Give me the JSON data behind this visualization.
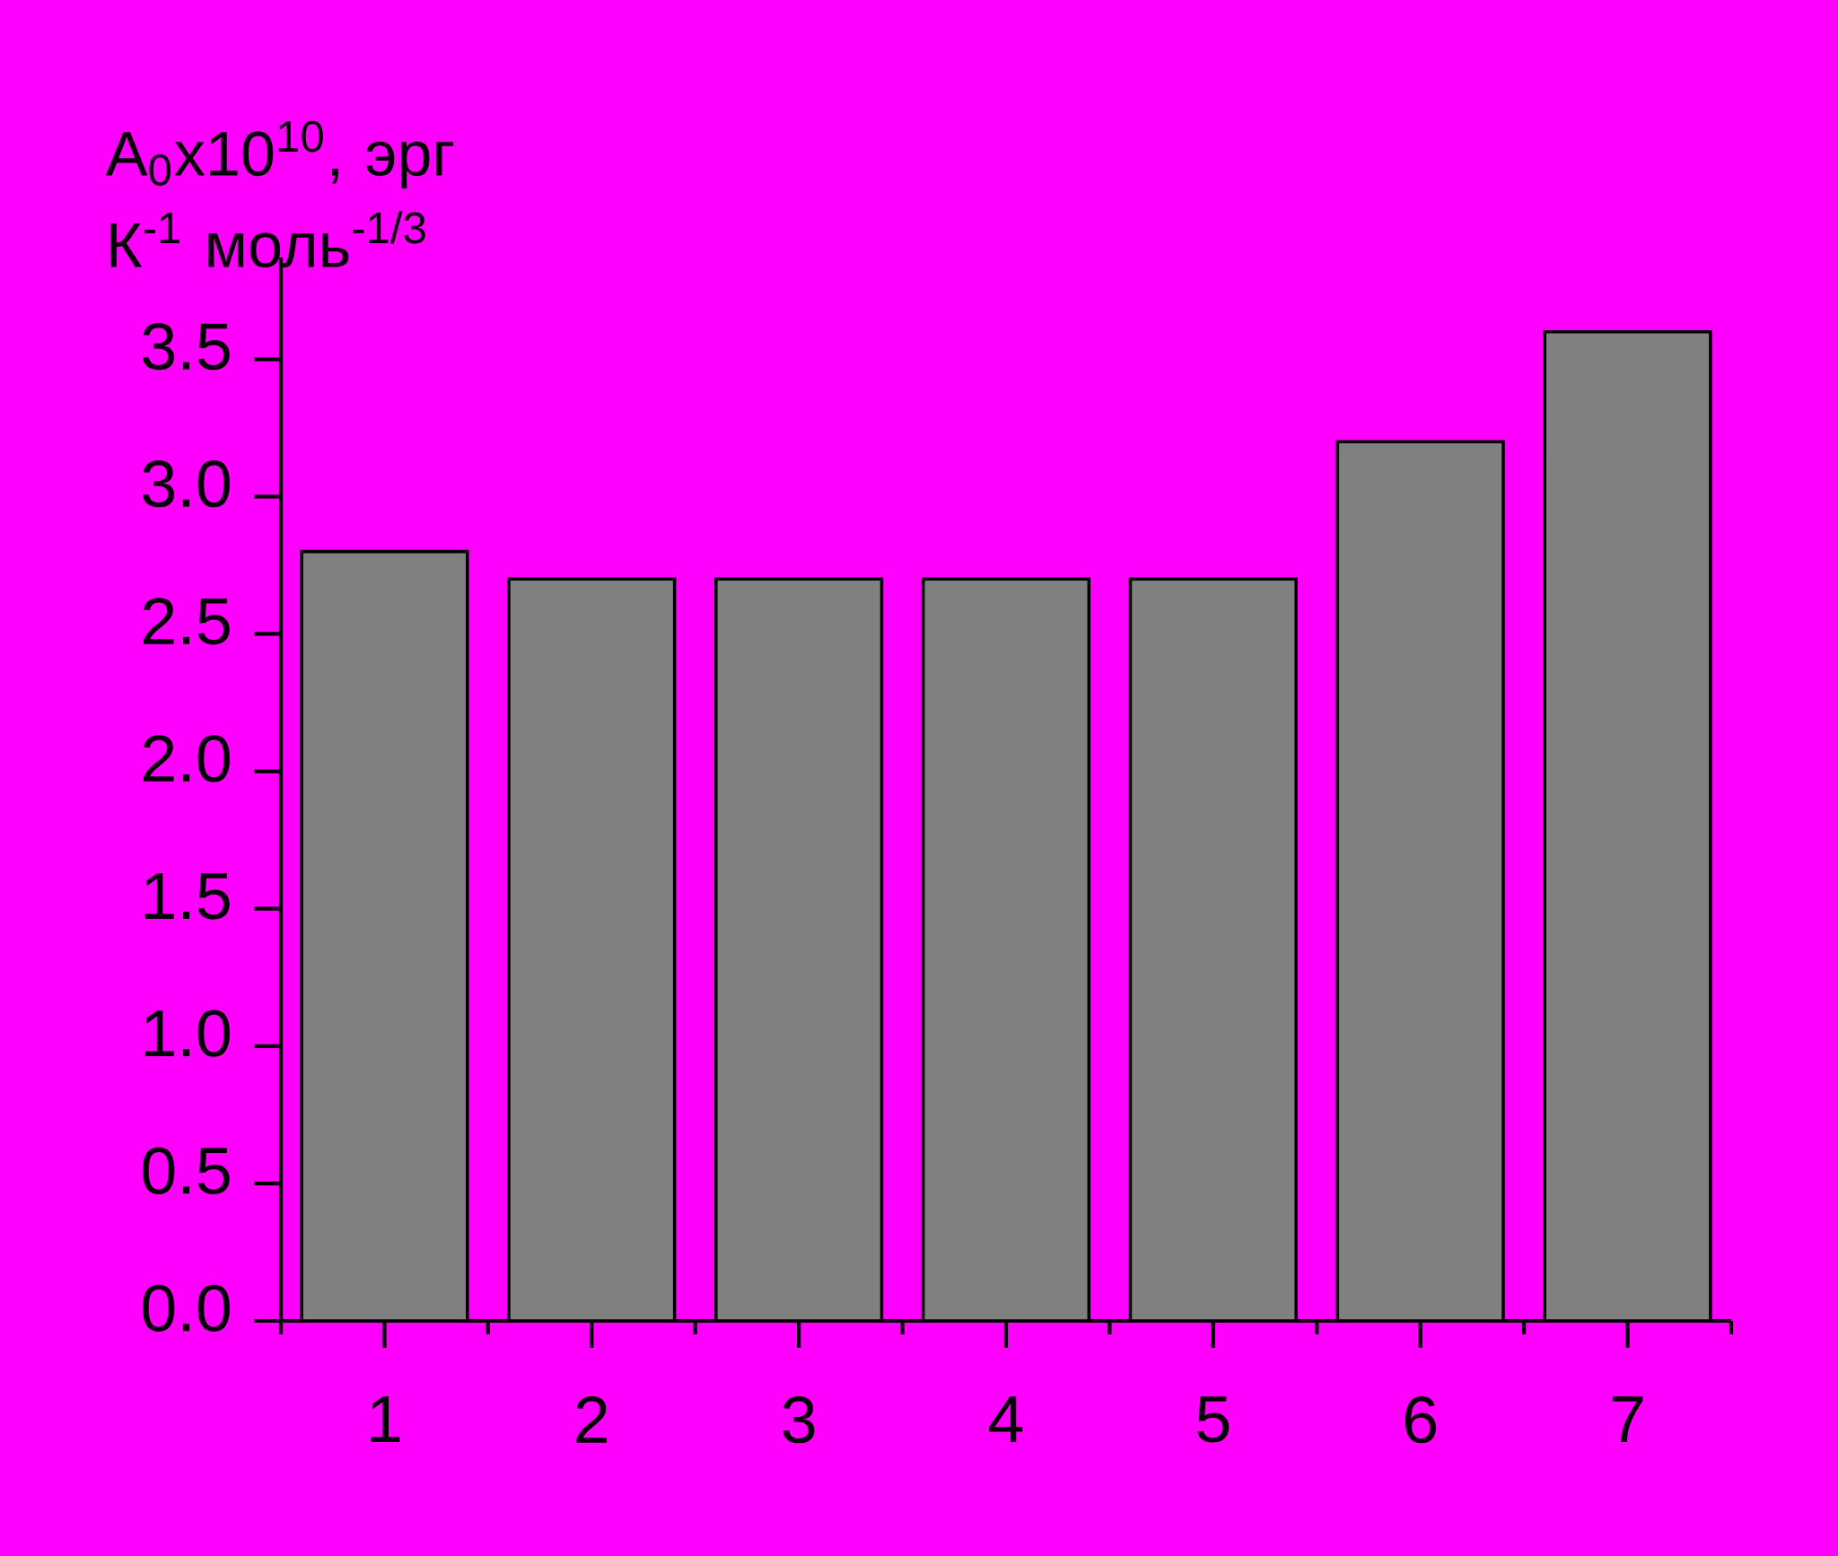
{
  "chart_data": {
    "type": "bar",
    "ylabel": "A$_{0}$x10$^{10}$, эрг К$^{-1}$ моль$^{-1/3}$",
    "categories": [
      "1",
      "2",
      "3",
      "4",
      "5",
      "6",
      "7"
    ],
    "values": [
      2.8,
      2.7,
      2.7,
      2.7,
      2.7,
      3.2,
      3.6
    ],
    "color": "#808080",
    "ylim": [
      0,
      3.87
    ],
    "yticks": [
      {
        "value": 0,
        "label": "0.0"
      },
      0.5,
      {
        "value": 1,
        "label": "1.0"
      },
      1.5,
      {
        "value": 2,
        "label": "2.0"
      },
      2.5,
      {
        "value": 3,
        "label": "3.0"
      },
      3.5
    ],
    "grid": false
  }
}
